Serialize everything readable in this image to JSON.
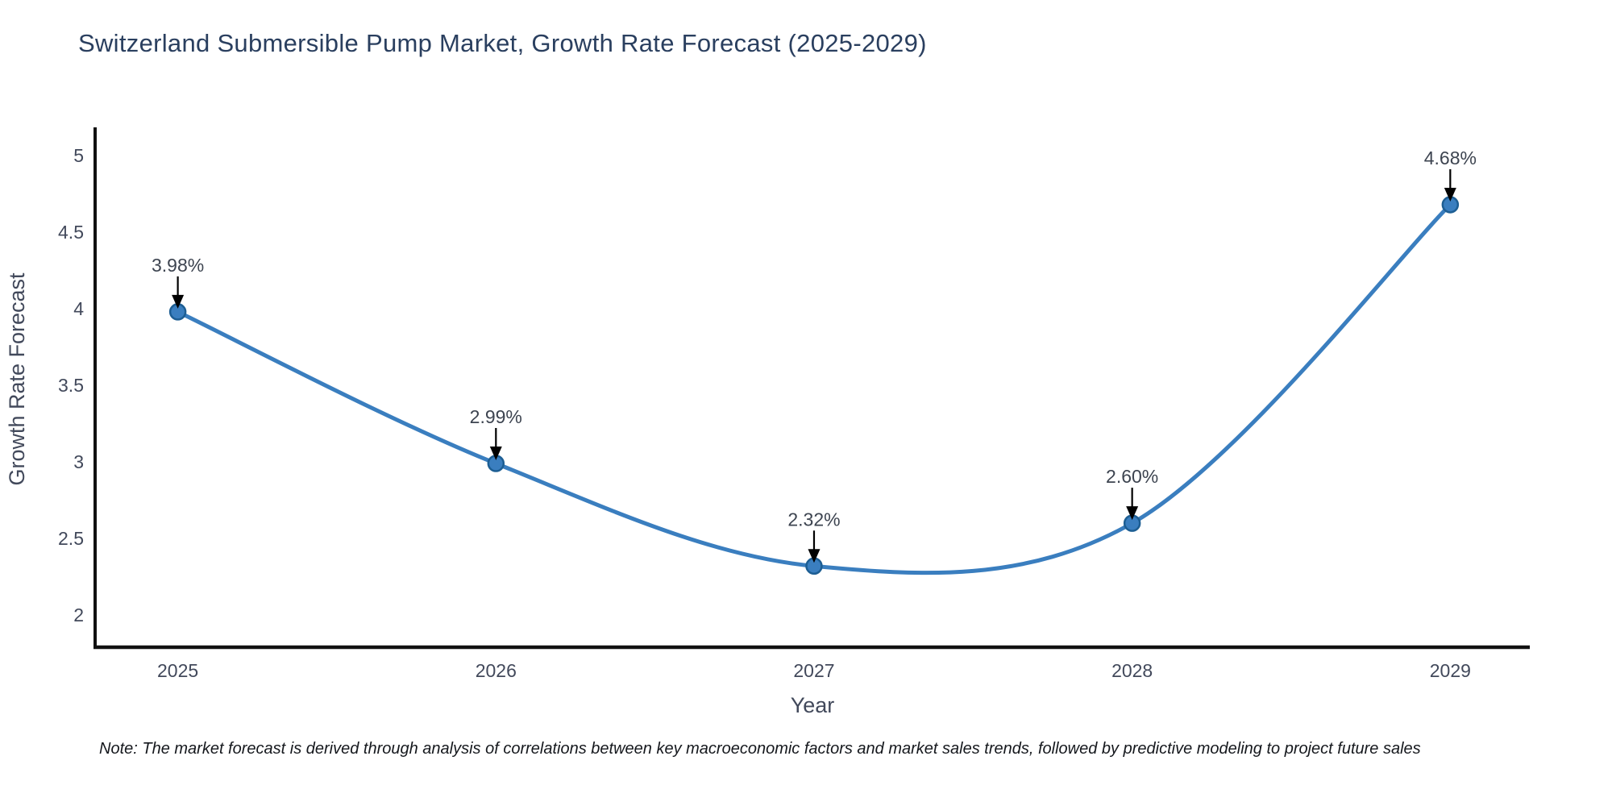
{
  "chart_data": {
    "type": "line",
    "title": "Switzerland Submersible Pump Market, Growth Rate Forecast (2025-2029)",
    "xlabel": "Year",
    "ylabel": "Growth Rate Forecast",
    "categories": [
      2025,
      2026,
      2027,
      2028,
      2029
    ],
    "values": [
      3.98,
      2.99,
      2.32,
      2.6,
      4.68
    ],
    "point_labels": [
      "3.98%",
      "2.99%",
      "2.32%",
      "2.60%",
      "4.68%"
    ],
    "x_tick_labels": [
      "2025",
      "2026",
      "2027",
      "2028",
      "2029"
    ],
    "y_ticks": [
      2,
      2.5,
      3,
      3.5,
      4,
      4.5,
      5
    ],
    "y_tick_labels": [
      "2",
      "2.5",
      "3",
      "3.5",
      "4",
      "4.5",
      "5"
    ],
    "xlim": [
      2024.74,
      2029.25
    ],
    "ylim": [
      1.79,
      5.185
    ],
    "grid": false,
    "legend": false,
    "line_shape": "spline",
    "colors": {
      "line": "#3a7ebf",
      "marker_fill": "#3a7ebf",
      "marker_edge": "#1d5e93",
      "axis": "#111111",
      "title_text": "#2a3f5f",
      "tick_text": "#42495b",
      "axis_title_text": "#42495b",
      "annotation_text": "#3d4450",
      "arrow": "#000000",
      "background": "#ffffff"
    }
  },
  "note": "Note: The market forecast is derived through analysis of correlations between key macroeconomic factors and market sales trends, followed by predictive modeling to project future sales"
}
